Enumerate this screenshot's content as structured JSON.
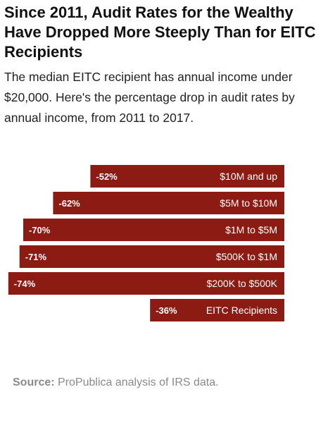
{
  "header": {
    "title": "Since 2011, Audit Rates for the Wealthy Have Dropped More Steeply Than for EITC Recipients",
    "subtitle": "The median EITC recipient has annual income under $20,000. Here's the percentage drop in audit rates by annual income, from 2011 to 2017."
  },
  "chart_data": {
    "type": "bar",
    "orientation": "horizontal",
    "categories": [
      "$10M and up",
      "$5M to $10M",
      "$1M to $5M",
      "$500K to $1M",
      "$200K to $500K",
      "EITC Recipients"
    ],
    "values": [
      -52,
      -62,
      -70,
      -71,
      -74,
      -36
    ],
    "value_labels": [
      "-52%",
      "-62%",
      "-70%",
      "-71%",
      "-74%",
      "-36%"
    ],
    "bar_color": "#8c1c13"
  },
  "footer": {
    "source_label": "Source:",
    "source_text": " ProPublica analysis of IRS data."
  }
}
